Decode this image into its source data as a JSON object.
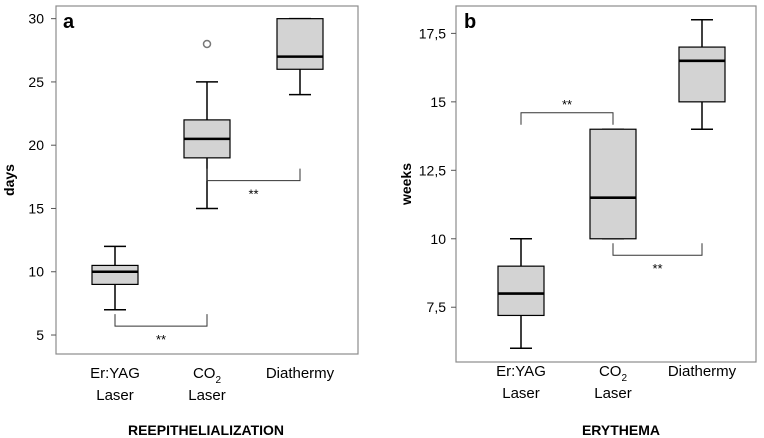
{
  "chart_data": [
    {
      "type": "box",
      "panel_label": "a",
      "ylabel": "days",
      "xlabel": "REEPITHELIALIZATION",
      "ylim": [
        3.5,
        31
      ],
      "yticks": [
        {
          "value": 5,
          "label": "5"
        },
        {
          "value": 10,
          "label": "10"
        },
        {
          "value": 15,
          "label": "15"
        },
        {
          "value": 20,
          "label": "20"
        },
        {
          "value": 25,
          "label": "25"
        },
        {
          "value": 30,
          "label": "30"
        }
      ],
      "categories": [
        {
          "line1": "Er:YAG",
          "line2": "Laser"
        },
        {
          "line1": "CO",
          "sub": "2",
          "line2": "Laser"
        },
        {
          "line1": "Diathermy",
          "line2": ""
        }
      ],
      "boxes": [
        {
          "min": 7,
          "q1": 9,
          "median": 10,
          "q3": 10.5,
          "max": 12,
          "outliers": []
        },
        {
          "min": 15,
          "q1": 19,
          "median": 20.5,
          "q3": 22,
          "max": 25,
          "outliers": [
            28
          ]
        },
        {
          "min": 24,
          "q1": 26,
          "median": 27,
          "q3": 30,
          "max": 30,
          "outliers": []
        }
      ],
      "annotations": [
        {
          "from": 0,
          "to": 1,
          "y": 5.7,
          "dir": "up",
          "text": "**"
        },
        {
          "from": 1,
          "to": 2,
          "y": 17.2,
          "dir": "up",
          "text": "**"
        }
      ],
      "grid": false
    },
    {
      "type": "box",
      "panel_label": "b",
      "ylabel": "weeks",
      "xlabel": "ERYTHEMA",
      "ylim": [
        5.5,
        18.5
      ],
      "yticks": [
        {
          "value": 7.5,
          "label": "7,5"
        },
        {
          "value": 10,
          "label": "10"
        },
        {
          "value": 12.5,
          "label": "12,5"
        },
        {
          "value": 15,
          "label": "15"
        },
        {
          "value": 17.5,
          "label": "17,5"
        }
      ],
      "categories": [
        {
          "line1": "Er:YAG",
          "line2": "Laser"
        },
        {
          "line1": "CO",
          "sub": "2",
          "line2": "Laser"
        },
        {
          "line1": "Diathermy",
          "line2": ""
        }
      ],
      "boxes": [
        {
          "min": 6,
          "q1": 7.2,
          "median": 8,
          "q3": 9,
          "max": 10,
          "outliers": []
        },
        {
          "min": 10,
          "q1": 10,
          "median": 11.5,
          "q3": 14,
          "max": 14,
          "outliers": []
        },
        {
          "min": 14,
          "q1": 15,
          "median": 16.5,
          "q3": 17,
          "max": 18,
          "outliers": []
        }
      ],
      "annotations": [
        {
          "from": 0,
          "to": 1,
          "y": 14.6,
          "dir": "down",
          "text": "**"
        },
        {
          "from": 1,
          "to": 2,
          "y": 9.4,
          "dir": "up",
          "text": "**"
        }
      ],
      "grid": false
    }
  ]
}
